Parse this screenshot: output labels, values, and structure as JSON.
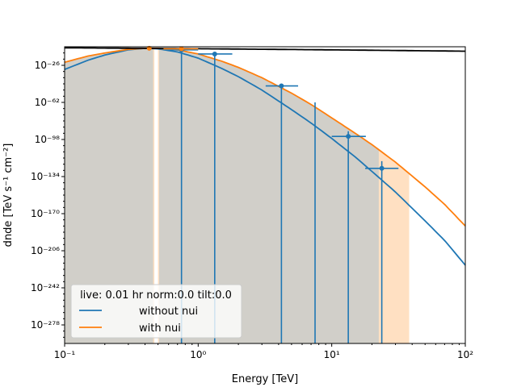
{
  "chart_data": {
    "type": "line",
    "xlabel": "Energy [TeV]",
    "ylabel": "dnde [TeV s⁻¹ cm⁻²]",
    "xscale": "log",
    "yscale": "log",
    "xlim": [
      0.1,
      100
    ],
    "ylim_log10": [
      -296,
      -8
    ],
    "x_ticks": [
      {
        "value": 0.1,
        "label": "10⁻¹"
      },
      {
        "value": 1,
        "label": "10⁰"
      },
      {
        "value": 10,
        "label": "10¹"
      },
      {
        "value": 100,
        "label": "10²"
      }
    ],
    "y_ticks_log10": [
      {
        "value": -26,
        "label": "10⁻²⁶"
      },
      {
        "value": -62,
        "label": "10⁻⁶²"
      },
      {
        "value": -98,
        "label": "10⁻⁹⁸"
      },
      {
        "value": -134,
        "label": "10⁻¹³⁴"
      },
      {
        "value": -170,
        "label": "10⁻¹⁷⁰"
      },
      {
        "value": -206,
        "label": "10⁻²⁰⁶"
      },
      {
        "value": -242,
        "label": "10⁻²⁴²"
      },
      {
        "value": -278,
        "label": "10⁻²⁷⁸"
      }
    ],
    "legend": {
      "title": "live: 0.01 hr norm:0.0 tilt:0.0",
      "placement": "lower-left"
    },
    "series": [
      {
        "name": "without nui",
        "color": "#1f77b4",
        "x": [
          0.1,
          0.15,
          0.2,
          0.3,
          0.4,
          0.5,
          0.7,
          1,
          1.5,
          2,
          3,
          5,
          7,
          10,
          15,
          20,
          30,
          50,
          70,
          100
        ],
        "log10_y": [
          -30,
          -21,
          -16,
          -11,
          -9.5,
          -10,
          -13,
          -19,
          -29,
          -37,
          -50,
          -69,
          -82,
          -97,
          -115,
          -129,
          -149,
          -177,
          -196,
          -220
        ]
      },
      {
        "name": "with nui",
        "color": "#ff7f0e",
        "x": [
          0.1,
          0.15,
          0.2,
          0.3,
          0.4,
          0.5,
          0.7,
          1,
          1.5,
          2,
          3,
          5,
          7,
          10,
          15,
          20,
          30,
          50,
          70,
          100
        ],
        "log10_y": [
          -23,
          -17,
          -14,
          -10.5,
          -9.5,
          -9.5,
          -11,
          -15,
          -22,
          -28,
          -38,
          -53,
          -64,
          -77,
          -92,
          -103,
          -120,
          -144,
          -161,
          -182
        ]
      },
      {
        "color": "#000000",
        "x": [
          0.1,
          1,
          10,
          100
        ],
        "log10_y": [
          -9.0,
          -9.9,
          -11.0,
          -12.3
        ]
      }
    ],
    "data_points": {
      "color": "#1f77b4",
      "points": [
        {
          "x": 0.75,
          "log10_y": -11,
          "x_err": [
            0.55,
            1.0
          ],
          "log10_y_lo": -296,
          "log10_y_hi": -10
        },
        {
          "x": 1.33,
          "log10_y": -15,
          "x_err": [
            1.0,
            1.8
          ],
          "log10_y_lo": -296,
          "log10_y_hi": -14
        },
        {
          "x": 4.2,
          "log10_y": -46,
          "x_err": [
            3.2,
            5.6
          ],
          "log10_y_lo": -296,
          "log10_y_hi": -46
        },
        {
          "x": 7.5,
          "log10_y": -62,
          "x_err": [
            7.5,
            7.5
          ],
          "log10_y_lo": -296,
          "log10_y_hi": -62
        },
        {
          "x": 13.3,
          "log10_y": -95,
          "x_err": [
            10,
            18
          ],
          "log10_y_lo": -296,
          "log10_y_hi": -90
        },
        {
          "x": 23.7,
          "log10_y": -126,
          "x_err": [
            17.8,
            31.6
          ],
          "log10_y_lo": -296,
          "log10_y_hi": -119
        }
      ]
    },
    "orange_points": [
      {
        "x": 0.43,
        "log10_y": -9.5
      },
      {
        "x": 0.75,
        "log10_y": -10
      }
    ],
    "bands": [
      {
        "name": "orange-band",
        "color": "#ffe0c2",
        "x_ranges": [
          [
            0.1,
            0.47
          ],
          [
            0.5,
            38
          ]
        ],
        "log10_top": "with-nui",
        "log10_bottom": -296
      },
      {
        "name": "gray-band",
        "color": "#d1cfc9",
        "x_ranges": [
          [
            0.1,
            0.46
          ],
          [
            0.51,
            22.5
          ]
        ],
        "log10_top": "with-nui",
        "log10_bottom": -296
      }
    ]
  }
}
